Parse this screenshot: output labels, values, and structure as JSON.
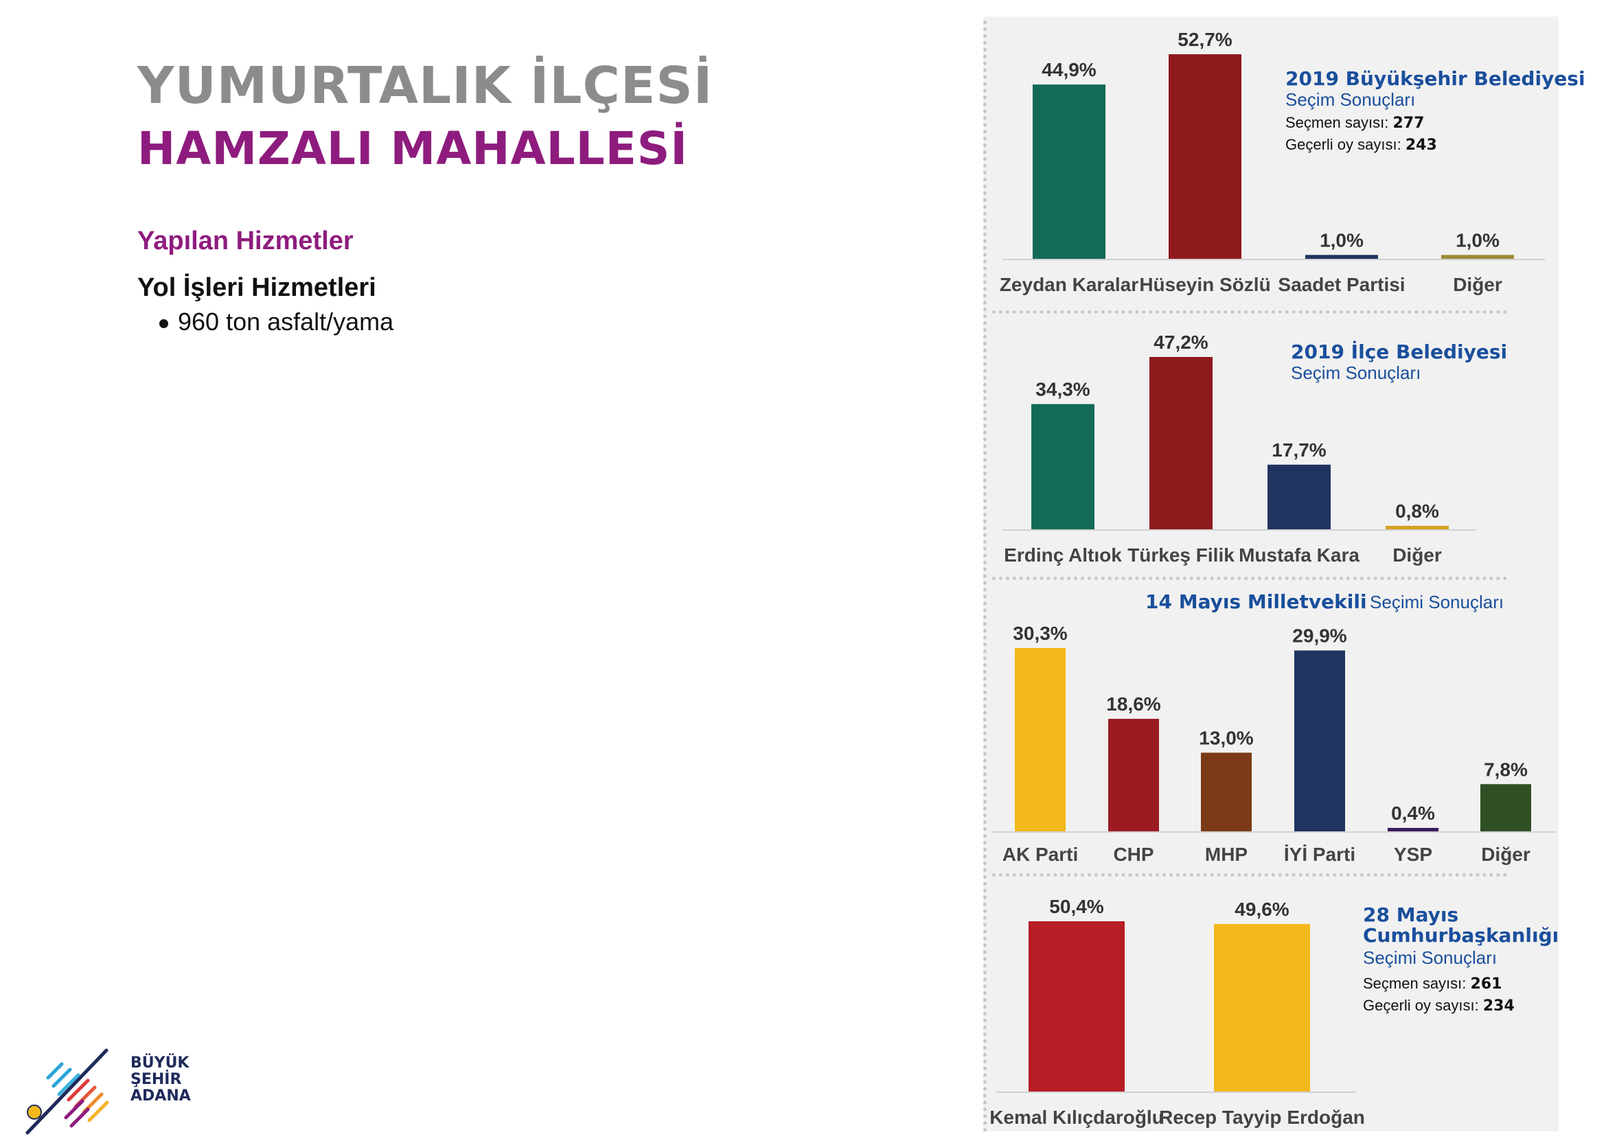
{
  "page": {
    "title_line1": "YUMURTALIK İLÇESİ",
    "title_line2": "HAMZALI MAHALLESİ",
    "section_heading": "Yapılan Hizmetler",
    "sub_heading": "Yol İşleri Hizmetleri",
    "bullets": [
      "960 ton asfalt/yama"
    ]
  },
  "logo": {
    "line1": "BÜYÜK",
    "line2": "ŞEHİR",
    "line3": "ADANA"
  },
  "info": {
    "c1_title": "2019 Büyükşehir Belediyesi",
    "c1_sub": "Seçim Sonuçları",
    "c1_voters_label": "Seçmen sayısı:",
    "c1_voters_value": "277",
    "c1_valid_label": "Geçerli oy sayısı:",
    "c1_valid_value": "243",
    "c2_title": "2019 İlçe Belediyesi",
    "c2_sub": "Seçim Sonuçları",
    "c3_title": "14 Mayıs Milletvekili",
    "c3_sub": "Seçimi Sonuçları",
    "c4_title_a": "28 Mayıs",
    "c4_title_b": "Cumhurbaşkanlığı",
    "c4_sub": "Seçimi Sonuçları",
    "c4_voters_label": "Seçmen sayısı:",
    "c4_voters_value": "261",
    "c4_valid_label": "Geçerli oy sayısı:",
    "c4_valid_value": "234"
  },
  "chart_data": [
    {
      "type": "bar",
      "title": "2019 Büyükşehir Belediyesi Seçim Sonuçları",
      "categories": [
        "Zeydan Karalar",
        "Hüseyin Sözlü",
        "Saadet Partisi",
        "Diğer"
      ],
      "values": [
        44.9,
        52.7,
        1.0,
        1.0
      ],
      "value_labels": [
        "44,9%",
        "52,7%",
        "1,0%",
        "1,0%"
      ],
      "colors": [
        "#136b57",
        "#8f1a1e",
        "#1f3560",
        "#9c8a35"
      ],
      "ylim": [
        0,
        52.7
      ]
    },
    {
      "type": "bar",
      "title": "2019 İlçe Belediyesi Seçim Sonuçları",
      "categories": [
        "Erdinç Altıok",
        "Türkeş Filik",
        "Mustafa Kara",
        "Diğer"
      ],
      "values": [
        34.3,
        47.2,
        17.7,
        0.8
      ],
      "value_labels": [
        "34,3%",
        "47,2%",
        "17,7%",
        "0,8%"
      ],
      "colors": [
        "#136b57",
        "#8f1a1e",
        "#1f3560",
        "#d4a21c"
      ],
      "ylim": [
        0,
        47.2
      ]
    },
    {
      "type": "bar",
      "title": "14 Mayıs Milletvekili Seçimi Sonuçları",
      "categories": [
        "AK Parti",
        "CHP",
        "MHP",
        "İYİ Parti",
        "YSP",
        "Diğer"
      ],
      "values": [
        30.3,
        18.6,
        13.0,
        29.9,
        0.4,
        7.8
      ],
      "value_labels": [
        "30,3%",
        "18,6%",
        "13,0%",
        "29,9%",
        "0,4%",
        "7,8%"
      ],
      "colors": [
        "#f2b81c",
        "#9b1b23",
        "#7a3a17",
        "#1f3560",
        "#3b1a5a",
        "#2f5025"
      ],
      "ylim": [
        0,
        30.3
      ]
    },
    {
      "type": "bar",
      "title": "28 Mayıs Cumhurbaşkanlığı Seçimi Sonuçları",
      "categories": [
        "Kemal Kılıçdaroğlu",
        "Recep Tayyip Erdoğan"
      ],
      "values": [
        50.4,
        49.6
      ],
      "value_labels": [
        "50,4%",
        "49,6%"
      ],
      "colors": [
        "#b81c24",
        "#f2b81c"
      ],
      "ylim": [
        0,
        50.4
      ]
    }
  ]
}
